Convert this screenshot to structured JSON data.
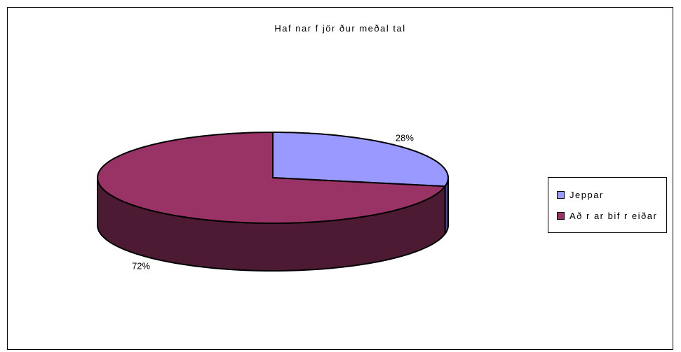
{
  "chart_data": {
    "type": "pie",
    "title": "Haf nar f jör ður meðal tal",
    "categories": [
      "Jeppar",
      "Að r ar bif r eiðar"
    ],
    "values": [
      28,
      72
    ],
    "data_labels": [
      "28%",
      "72%"
    ],
    "colors": [
      "#9999ff",
      "#993366"
    ],
    "side_colors": [
      "#4a4a8c",
      "#4d1a33"
    ],
    "legend_position": "right",
    "style": "3d"
  }
}
